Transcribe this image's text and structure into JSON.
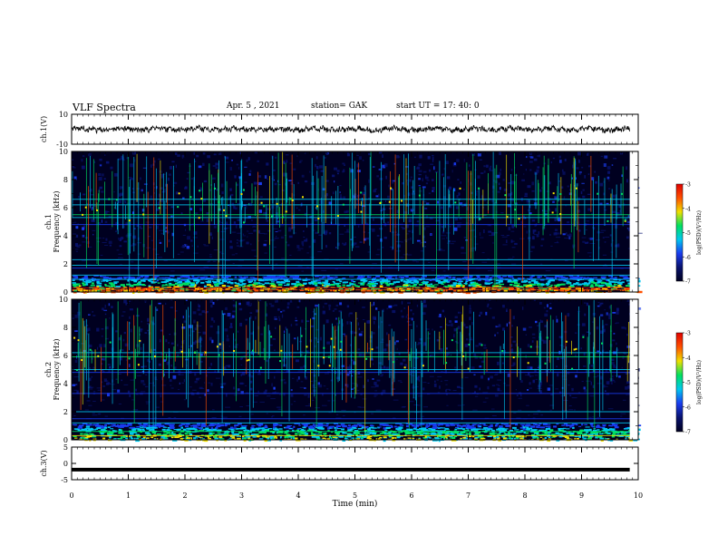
{
  "header": {
    "title": "VLF Spectra",
    "date": "Apr. 5 , 2021",
    "station": "station= GAK",
    "start": "start UT = 17: 40: 0"
  },
  "chart_data": [
    {
      "type": "line",
      "ylabel": "ch.1(V)",
      "ylim": [
        -10,
        10
      ],
      "yticks": [
        "10",
        "-10"
      ],
      "color": "#000000"
    },
    {
      "type": "heatmap",
      "ylabel": "ch.1 Frequency (kHz)",
      "ylim": [
        0,
        10
      ],
      "yticks": [
        "0",
        "2",
        "4",
        "6",
        "8",
        "10"
      ],
      "colorbar": {
        "label": "log(PSD)(V²/Hz)",
        "range": [
          -7,
          -3
        ],
        "ticks": [
          "-3",
          "-4",
          "-5",
          "-6",
          "-7"
        ]
      }
    },
    {
      "type": "heatmap",
      "ylabel": "ch.2 Frequency (kHz)",
      "ylim": [
        0,
        10
      ],
      "yticks": [
        "0",
        "2",
        "4",
        "6",
        "8",
        "10"
      ],
      "colorbar": {
        "label": "log(PSD)(V²/Hz)",
        "range": [
          -7,
          -3
        ],
        "ticks": [
          "-3",
          "-4",
          "-5",
          "-6",
          "-7"
        ]
      }
    },
    {
      "type": "line",
      "ylabel": "ch.3(V)",
      "ylim": [
        -5,
        5
      ],
      "yticks": [
        "5",
        "0",
        "-5"
      ],
      "color": "#000000"
    }
  ],
  "xaxis": {
    "label": "Time (min)",
    "xlim": [
      0,
      10
    ],
    "ticks": [
      "0",
      "1",
      "2",
      "3",
      "4",
      "5",
      "6",
      "7",
      "8",
      "9",
      "10"
    ]
  },
  "colormap": [
    "#000020",
    "#08126e",
    "#1a3cf0",
    "#00c8f0",
    "#00e060",
    "#f0e000",
    "#ff5000",
    "#e00000"
  ]
}
